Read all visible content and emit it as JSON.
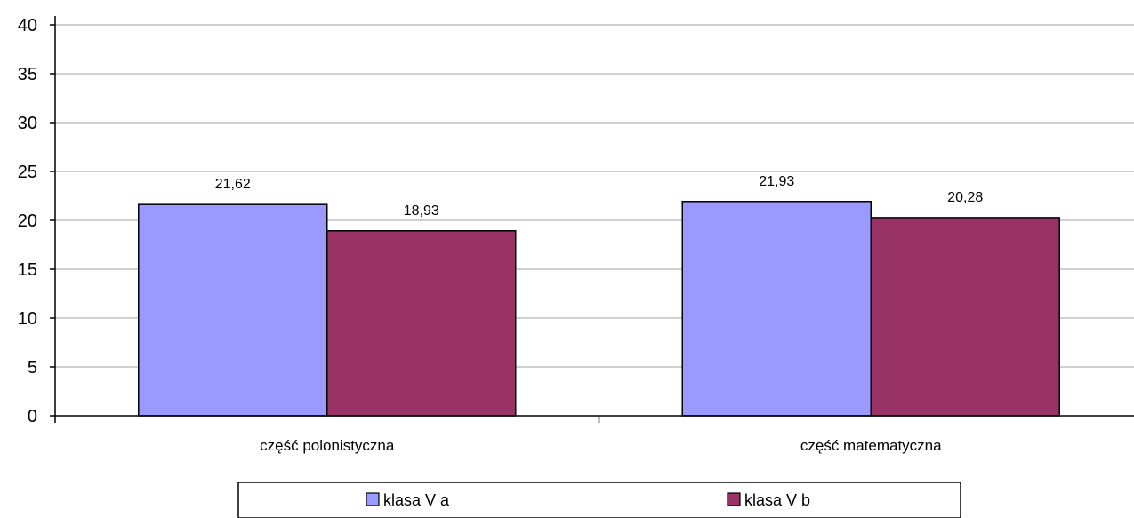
{
  "chart_data": {
    "type": "bar",
    "categories": [
      "część polonistyczna",
      "część matematyczna"
    ],
    "series": [
      {
        "name": "klasa V a",
        "values": [
          21.62,
          21.93
        ],
        "labels": [
          "21,62",
          "21,93"
        ],
        "color": "#9999FF"
      },
      {
        "name": "klasa V b",
        "values": [
          18.93,
          20.28
        ],
        "labels": [
          "18,93",
          "20,28"
        ],
        "color": "#993366"
      }
    ],
    "yticks": [
      "0",
      "5",
      "10",
      "15",
      "20",
      "25",
      "30",
      "35",
      "40"
    ],
    "ylim": [
      0,
      40
    ],
    "grid": true,
    "legend_position": "bottom"
  }
}
